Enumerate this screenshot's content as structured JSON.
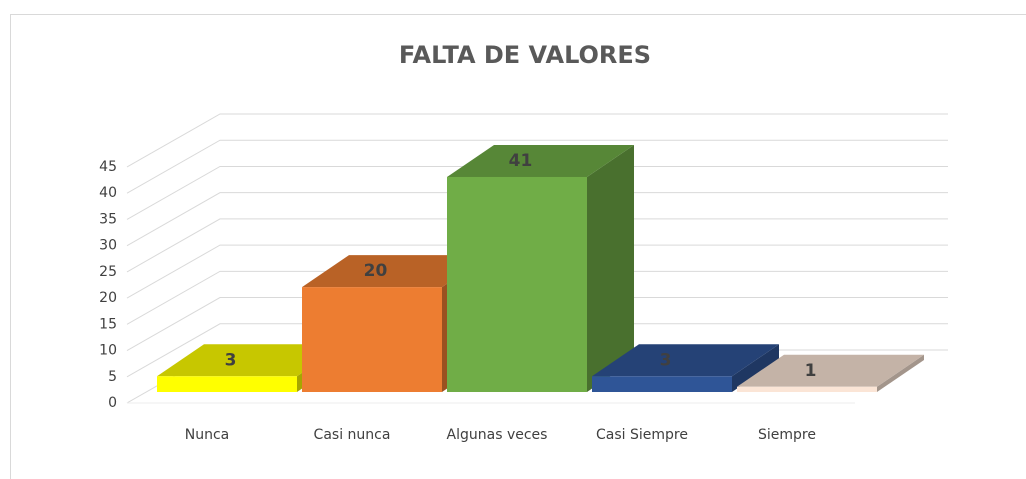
{
  "chart_data": {
    "type": "bar3d",
    "title": "FALTA DE VALORES",
    "categories": [
      "Nunca",
      "Casi nunca",
      "Algunas veces",
      "Casi Siempre",
      "Siempre"
    ],
    "values": [
      3,
      20,
      41,
      3,
      1
    ],
    "colors": [
      "#ffff00",
      "#ed7d31",
      "#70ad47",
      "#2f5597",
      "#fbe5d6"
    ],
    "ylim": [
      0,
      45
    ],
    "yticks": [
      0,
      5,
      10,
      15,
      20,
      25,
      30,
      35,
      40,
      45
    ],
    "grid": true
  }
}
